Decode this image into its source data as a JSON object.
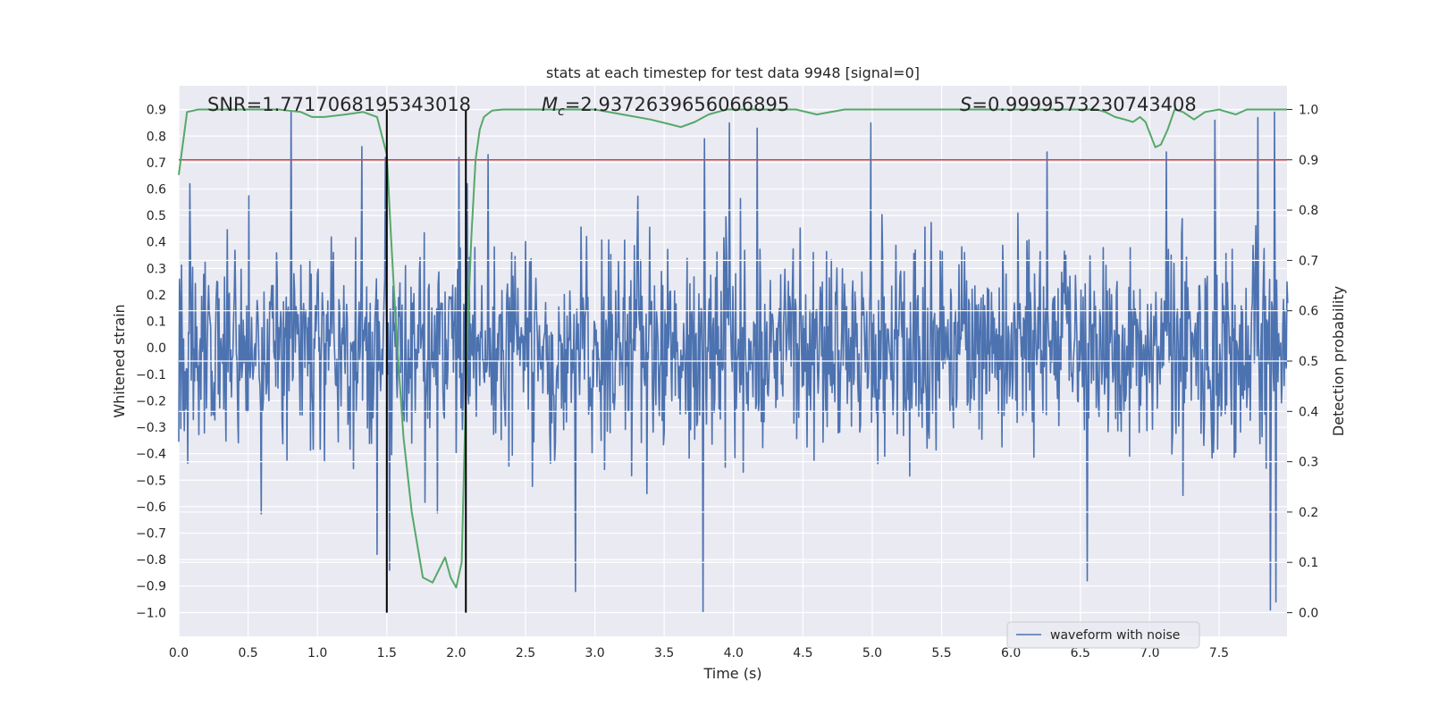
{
  "chart_data": {
    "type": "line",
    "title": "stats at each timestep for test data 9948 [signal=0]",
    "xlabel": "Time (s)",
    "ylabel_left": "Whitened strain",
    "ylabel_right": "Detection probability",
    "xlim": [
      0.0,
      7.99
    ],
    "ylim_left": [
      -1.09,
      0.99
    ],
    "ylim_right": [
      -0.047,
      1.047
    ],
    "x_ticks": [
      "0.0",
      "0.5",
      "1.0",
      "1.5",
      "2.0",
      "2.5",
      "3.0",
      "3.5",
      "4.0",
      "4.5",
      "5.0",
      "5.5",
      "6.0",
      "6.5",
      "7.0",
      "7.5"
    ],
    "y_ticks_left": [
      "0.9",
      "0.8",
      "0.7",
      "0.6",
      "0.5",
      "0.4",
      "0.3",
      "0.2",
      "0.1",
      "0.0",
      "−0.1",
      "−0.2",
      "−0.3",
      "−0.4",
      "−0.5",
      "−0.6",
      "−0.7",
      "−0.8",
      "−0.9",
      "−1.0"
    ],
    "y_ticks_right": [
      "1.0",
      "0.9",
      "0.8",
      "0.7",
      "0.6",
      "0.5",
      "0.4",
      "0.3",
      "0.2",
      "0.1",
      "0.0"
    ],
    "annotations": {
      "snr": "SNR=1.7717068195343018",
      "mc_symbol": "M",
      "mc_sub": "c",
      "mc_value": "=2.9372639656066895",
      "s_symbol": "S",
      "s_value": "=0.9999573230743408"
    },
    "legend": {
      "label": "waveform with noise",
      "placement": "lower-right"
    },
    "threshold_line": {
      "axis": "right",
      "value": 0.9,
      "color": "#c44e52"
    },
    "vertical_lines": [
      1.5,
      2.07
    ],
    "waveform": {
      "name": "waveform with noise",
      "color": "#4c72b0",
      "duration_s": 8.0,
      "samples": 1600,
      "seed": 9948,
      "spikes_upper": [
        [
          0.08,
          0.62
        ],
        [
          0.81,
          0.9
        ],
        [
          1.32,
          0.76
        ],
        [
          1.49,
          0.72
        ],
        [
          2.02,
          0.72
        ],
        [
          2.08,
          0.62
        ],
        [
          2.23,
          0.73
        ],
        [
          3.79,
          0.79
        ],
        [
          3.97,
          0.85
        ],
        [
          4.17,
          0.83
        ],
        [
          4.99,
          0.85
        ],
        [
          6.26,
          0.74
        ],
        [
          7.12,
          0.74
        ],
        [
          7.47,
          0.86
        ],
        [
          7.78,
          0.87
        ],
        [
          7.9,
          0.89
        ]
      ],
      "spikes_lower": [
        [
          1.43,
          -0.78
        ],
        [
          1.52,
          -0.84
        ],
        [
          2.86,
          -0.92
        ],
        [
          3.78,
          -1.0
        ],
        [
          6.55,
          -0.88
        ],
        [
          7.87,
          -0.99
        ],
        [
          7.91,
          -0.96
        ]
      ]
    },
    "probability": {
      "name": "detection probability",
      "color": "#55a868",
      "t": [
        0.0,
        0.06,
        0.14,
        0.3,
        0.5,
        0.72,
        0.88,
        0.96,
        1.05,
        1.2,
        1.33,
        1.43,
        1.5,
        1.53,
        1.57,
        1.62,
        1.68,
        1.76,
        1.83,
        1.92,
        1.96,
        2.0,
        2.04,
        2.08,
        2.11,
        2.14,
        2.17,
        2.2,
        2.26,
        2.34,
        2.44,
        2.6,
        2.8,
        3.0,
        3.2,
        3.4,
        3.55,
        3.62,
        3.72,
        3.82,
        3.95,
        4.2,
        4.45,
        4.6,
        4.8,
        5.0,
        5.2,
        5.5,
        5.8,
        6.0,
        6.4,
        6.62,
        6.68,
        6.75,
        6.82,
        6.88,
        6.93,
        6.97,
        7.04,
        7.08,
        7.13,
        7.18,
        7.24,
        7.32,
        7.4,
        7.5,
        7.56,
        7.62,
        7.7,
        7.8,
        7.9,
        7.99
      ],
      "p": [
        0.87,
        0.995,
        1.0,
        1.0,
        1.0,
        1.0,
        0.995,
        0.985,
        0.985,
        0.99,
        0.995,
        0.985,
        0.91,
        0.75,
        0.55,
        0.35,
        0.2,
        0.07,
        0.06,
        0.11,
        0.07,
        0.05,
        0.1,
        0.55,
        0.75,
        0.9,
        0.96,
        0.985,
        0.998,
        1.0,
        1.0,
        1.0,
        1.0,
        1.0,
        0.99,
        0.98,
        0.97,
        0.965,
        0.975,
        0.99,
        1.0,
        1.0,
        1.0,
        0.99,
        1.0,
        1.0,
        1.0,
        1.0,
        1.0,
        1.0,
        1.0,
        1.0,
        0.995,
        0.985,
        0.98,
        0.975,
        0.985,
        0.975,
        0.925,
        0.93,
        0.96,
        1.0,
        0.995,
        0.98,
        0.995,
        1.0,
        0.995,
        0.99,
        1.0,
        1.0,
        1.0,
        1.0
      ]
    }
  }
}
